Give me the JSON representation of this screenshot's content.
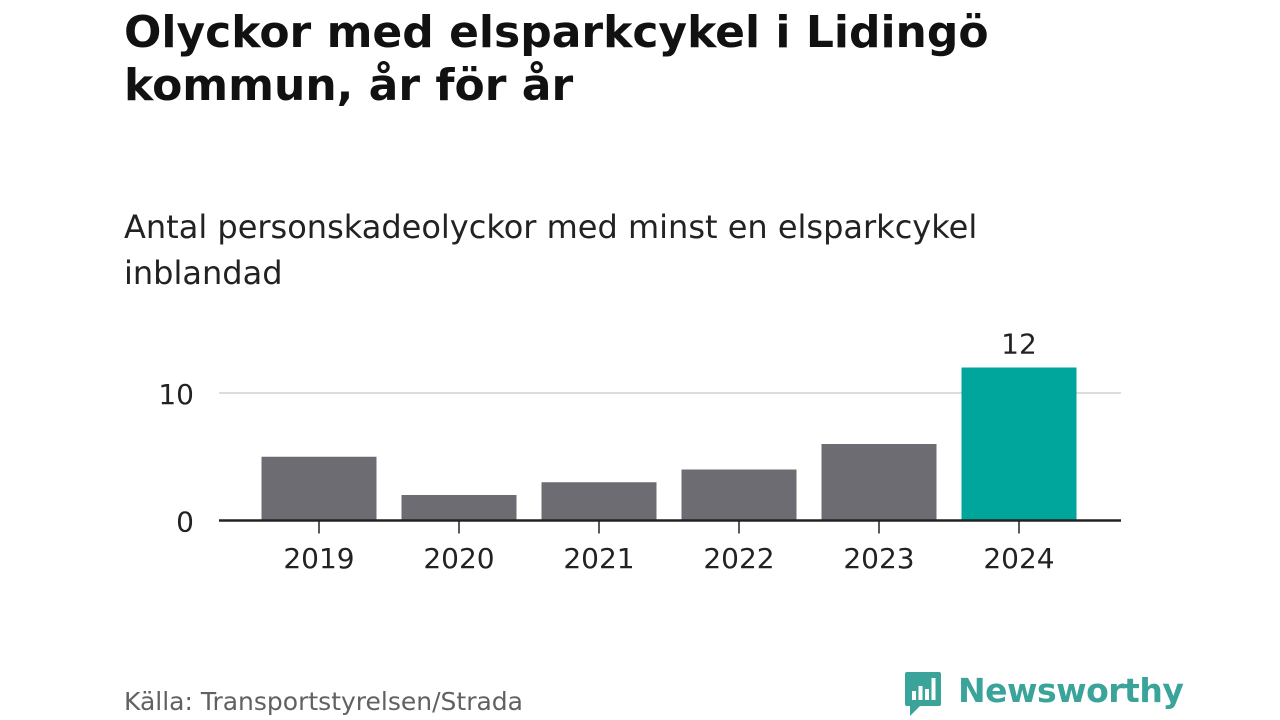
{
  "title": "Olyckor med elsparkcykel i Lidingö kommun, år för år",
  "subtitle": "Antal personskadeolyckor med minst en elsparkcykel inblandad",
  "source": "Källa: Transportstyrelsen/Strada",
  "brand": {
    "name": "Newsworthy",
    "icon": "newsworthy-bar-chart-bubble-icon",
    "color": "#3aa39a"
  },
  "colors": {
    "bar": "#6d6c72",
    "highlight": "#00a59b",
    "gridline": "#dddddd",
    "axis": "#222222",
    "text": "#222222"
  },
  "chart_data": {
    "type": "bar",
    "categories": [
      "2019",
      "2020",
      "2021",
      "2022",
      "2023",
      "2024"
    ],
    "values": [
      5,
      2,
      3,
      4,
      6,
      12
    ],
    "highlight_index": 5,
    "data_labels": [
      {
        "index": 5,
        "text": "12"
      }
    ],
    "y_ticks": [
      {
        "value": 0,
        "label": "0"
      },
      {
        "value": 10,
        "label": "10"
      }
    ],
    "ylim": [
      0,
      12
    ],
    "grid": true,
    "legend": "none"
  }
}
